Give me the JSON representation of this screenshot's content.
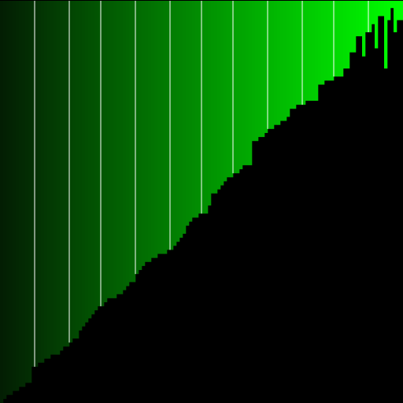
{
  "colors": {
    "background": "#000000",
    "bar_dark": "#032603",
    "bar_mid": "#0d9e0d",
    "bar_bright": "#00ff00",
    "separator": "#ffffff"
  },
  "visualizer": {
    "description_kind": "sorted-bar-visualization",
    "bar_count": 128,
    "bar_levels": [
      1.0,
      0.99,
      0.98,
      0.98,
      0.97,
      0.97,
      0.96,
      0.96,
      0.95,
      0.95,
      0.91,
      0.91,
      0.9,
      0.9,
      0.89,
      0.89,
      0.88,
      0.88,
      0.88,
      0.87,
      0.86,
      0.86,
      0.85,
      0.84,
      0.84,
      0.82,
      0.81,
      0.8,
      0.79,
      0.78,
      0.77,
      0.76,
      0.76,
      0.75,
      0.74,
      0.74,
      0.74,
      0.73,
      0.73,
      0.72,
      0.71,
      0.7,
      0.7,
      0.68,
      0.67,
      0.66,
      0.65,
      0.65,
      0.64,
      0.64,
      0.63,
      0.63,
      0.63,
      0.62,
      0.62,
      0.61,
      0.6,
      0.59,
      0.58,
      0.56,
      0.55,
      0.54,
      0.54,
      0.53,
      0.53,
      0.53,
      0.51,
      0.48,
      0.48,
      0.47,
      0.46,
      0.45,
      0.44,
      0.44,
      0.43,
      0.43,
      0.42,
      0.41,
      0.41,
      0.41,
      0.35,
      0.35,
      0.34,
      0.34,
      0.33,
      0.32,
      0.32,
      0.31,
      0.31,
      0.3,
      0.3,
      0.29,
      0.27,
      0.27,
      0.26,
      0.26,
      0.26,
      0.25,
      0.25,
      0.25,
      0.25,
      0.21,
      0.21,
      0.2,
      0.2,
      0.2,
      0.19,
      0.19,
      0.19,
      0.17,
      0.17,
      0.13,
      0.13,
      0.09,
      0.09,
      0.14,
      0.08,
      0.08,
      0.06,
      0.12,
      0.04,
      0.04,
      0.17,
      0.05,
      0.02,
      0.08,
      0.05,
      0.05
    ],
    "separator_after_bars": [
      11,
      22,
      32,
      43,
      54,
      64,
      74,
      85,
      96,
      106,
      117
    ]
  }
}
